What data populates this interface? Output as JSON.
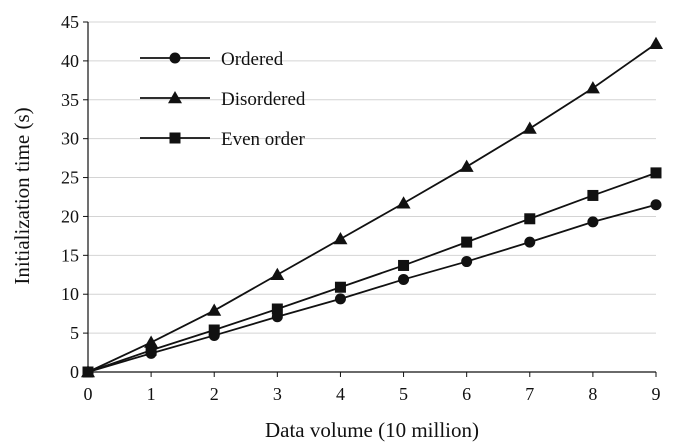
{
  "chart_data": {
    "type": "line",
    "xlabel": "Data volume (10 million)",
    "ylabel": "Initialization time (s)",
    "x": [
      0,
      1,
      2,
      3,
      4,
      5,
      6,
      7,
      8,
      9
    ],
    "xlim": [
      0,
      9
    ],
    "ylim": [
      0,
      45
    ],
    "x_ticks": [
      "0",
      "1",
      "2",
      "3",
      "4",
      "5",
      "6",
      "7",
      "8",
      "9"
    ],
    "y_ticks": [
      "0",
      "5",
      "10",
      "15",
      "20",
      "25",
      "30",
      "35",
      "40",
      "45"
    ],
    "grid": "horizontal",
    "legend": "top-left",
    "series": [
      {
        "name": "Ordered",
        "marker": "circle",
        "color": "#111111",
        "values": [
          0,
          2.4,
          4.7,
          7.1,
          9.4,
          11.9,
          14.2,
          16.7,
          19.3,
          21.5
        ]
      },
      {
        "name": "Disordered",
        "marker": "triangle",
        "color": "#111111",
        "values": [
          0,
          3.8,
          7.9,
          12.5,
          17.1,
          21.7,
          26.4,
          31.3,
          36.5,
          42.2
        ]
      },
      {
        "name": "Even order",
        "marker": "square",
        "color": "#111111",
        "values": [
          0,
          2.8,
          5.4,
          8.1,
          10.9,
          13.7,
          16.7,
          19.7,
          22.7,
          25.6
        ]
      }
    ]
  }
}
